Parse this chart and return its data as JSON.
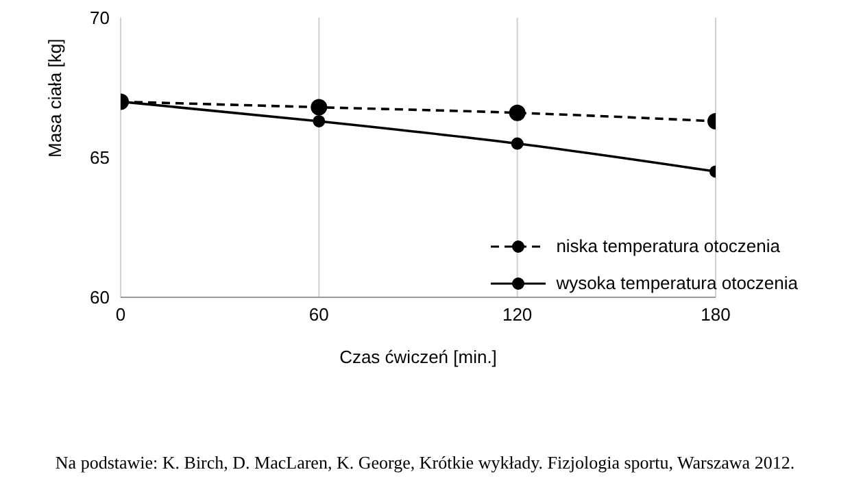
{
  "chart_data": {
    "type": "line",
    "xlabel": "Czas ćwiczeń [min.]",
    "ylabel": "Masa ciała [kg]",
    "x": [
      0,
      60,
      120,
      180
    ],
    "series": [
      {
        "name": "niska temperatura otoczenia",
        "color": "#000000",
        "values": [
          67,
          66.8,
          66.6,
          66.3
        ],
        "line_style": "dashed"
      },
      {
        "name": "wysoka temperatura otoczenia",
        "color": "#000000",
        "values": [
          67,
          66.3,
          65.5,
          64.5
        ],
        "line_style": "solid"
      }
    ],
    "xlim": [
      0,
      180
    ],
    "xticks": [
      0,
      60,
      120,
      180
    ],
    "ylim": [
      60,
      70
    ],
    "yticks": [
      60,
      65,
      70
    ],
    "grid": "x",
    "legend": "bottom right",
    "marker": "circle",
    "annotations": [
      "Na podstawie: K. Birch, D. MacLaren, K. George, Krótkie wykłady. Fizjologia sportu, Warszawa 2012."
    ]
  }
}
